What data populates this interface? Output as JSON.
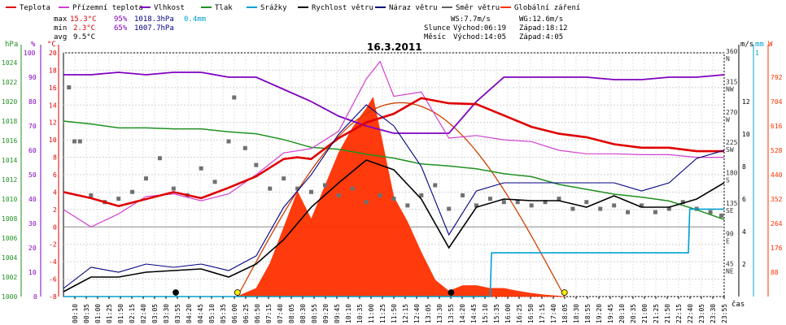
{
  "legend": [
    {
      "label": "Teplota",
      "color": "#e00000"
    },
    {
      "label": "Přízemní teplota",
      "color": "#d040d0"
    },
    {
      "label": "Vlhkost",
      "color": "#8000c0"
    },
    {
      "label": "Tlak",
      "color": "#209020"
    },
    {
      "label": "Srážky",
      "color": "#00a0d0"
    },
    {
      "label": "Rychlost větru",
      "color": "#000000"
    },
    {
      "label": "Náraz větru",
      "color": "#000080"
    },
    {
      "label": "Směr větru",
      "color": "#606060"
    },
    {
      "label": "Globální záření",
      "color": "#ff3000"
    }
  ],
  "stats": {
    "max_label": "max",
    "max_temp": "15.3°C",
    "max_hum": "95%",
    "max_press": "1018.3hPa",
    "max_rain": "0.4mm",
    "min_label": "min",
    "min_temp": "2.3°C",
    "min_hum": "65%",
    "min_press": "1007.7hPa",
    "avg_label": "avg",
    "avg_temp": "9.5°C"
  },
  "info": {
    "ws": "WS:7.7m/s",
    "wg": "WG:12.6m/s",
    "sun_label": "Slunce",
    "sun_rise": "Východ:06:19",
    "sun_set": "Západ:18:12",
    "moon_label": "Měsíc",
    "moon_rise": "Východ:14:05",
    "moon_set": "Západ:4:05"
  },
  "unit_labels": {
    "hpa": "hPa",
    "pct": "%",
    "degc": "°C",
    "ms": "m/s",
    "mm": "mm",
    "w": "W",
    "cas": "čas"
  },
  "chart_data": {
    "type": "line",
    "title": "16.3.2011",
    "xlabel": "čas",
    "x_ticks": [
      "00:10",
      "00:35",
      "01:00",
      "01:25",
      "01:50",
      "02:15",
      "02:40",
      "03:05",
      "03:30",
      "03:55",
      "04:20",
      "04:45",
      "05:10",
      "05:35",
      "06:00",
      "06:25",
      "06:50",
      "07:15",
      "07:40",
      "08:05",
      "08:30",
      "08:55",
      "09:20",
      "09:45",
      "10:10",
      "10:35",
      "11:00",
      "11:25",
      "11:50",
      "12:15",
      "12:40",
      "13:05",
      "13:30",
      "13:55",
      "14:20",
      "14:45",
      "15:10",
      "15:35",
      "16:00",
      "16:25",
      "16:50",
      "17:15",
      "17:40",
      "18:05",
      "18:30",
      "18:55",
      "19:20",
      "19:45",
      "20:10",
      "20:35",
      "21:00",
      "21:25",
      "21:50",
      "22:15",
      "22:40",
      "23:05",
      "23:30",
      "23:55"
    ],
    "axes": {
      "pressure_hpa": {
        "ticks": [
          1000,
          1002,
          1004,
          1006,
          1008,
          1010,
          1012,
          1014,
          1016,
          1018,
          1020,
          1022,
          1024
        ]
      },
      "humidity_pct": {
        "ticks": [
          0,
          10,
          20,
          30,
          40,
          50,
          60,
          70,
          80,
          90,
          100
        ]
      },
      "temperature_c": {
        "ticks": [
          -8,
          -6,
          -4,
          -2,
          0,
          2,
          4,
          6,
          8,
          10,
          12,
          14,
          16,
          18,
          20
        ]
      },
      "wind_dir": {
        "ticks": [
          {
            "v": 45,
            "d": "NE"
          },
          {
            "v": 90,
            "d": "E"
          },
          {
            "v": 135,
            "d": "SE"
          },
          {
            "v": 180,
            "d": "S"
          },
          {
            "v": 225,
            "d": "SW"
          },
          {
            "v": 270,
            "d": "W"
          },
          {
            "v": 315,
            "d": "NW"
          },
          {
            "v": 360,
            "d": "N"
          }
        ]
      },
      "wind_ms": {
        "ticks": [
          2,
          4,
          6,
          8,
          10,
          12
        ]
      },
      "rain_mm": {
        "ticks": [
          1
        ]
      },
      "radiation_w": {
        "ticks": [
          88,
          176,
          264,
          352,
          440,
          528,
          616,
          704,
          792
        ]
      }
    },
    "series": [
      {
        "name": "Teplota",
        "unit": "°C",
        "x": [
          0,
          1,
          2,
          3,
          4,
          5,
          6,
          7,
          8,
          8.5,
          9,
          10,
          11,
          12,
          13,
          14,
          15,
          16,
          17,
          18,
          19,
          20,
          21,
          22,
          23,
          24
        ],
        "y": [
          4,
          3.3,
          2.4,
          3.2,
          4,
          3.3,
          4.5,
          5.8,
          7.8,
          8,
          7.8,
          10.2,
          12,
          13,
          14.8,
          14.2,
          14.1,
          12.8,
          11.5,
          10.7,
          10.3,
          9.5,
          9.1,
          9.1,
          8.7,
          8.7
        ]
      },
      {
        "name": "Přízemní teplota",
        "unit": "°C",
        "x": [
          0,
          1,
          2,
          3,
          4,
          5,
          6,
          7,
          8,
          9,
          10,
          11,
          11.5,
          12,
          13,
          14,
          15,
          16,
          17,
          18,
          19,
          20,
          21,
          22,
          23,
          24
        ],
        "y": [
          2,
          0,
          1.5,
          3.5,
          3.8,
          3,
          3.8,
          6,
          8.5,
          9,
          11,
          17,
          19,
          15,
          15.5,
          10.2,
          10.5,
          10,
          9.8,
          8.8,
          8.4,
          8.4,
          8.3,
          8.3,
          8,
          8
        ]
      },
      {
        "name": "Vlhkost",
        "unit": "%",
        "x": [
          0,
          1,
          2,
          3,
          4,
          5,
          6,
          7,
          8,
          9,
          10,
          11,
          12,
          13,
          14,
          15,
          16,
          17,
          18,
          19,
          20,
          21,
          22,
          23,
          24
        ],
        "y": [
          91,
          91,
          92,
          91,
          92,
          92,
          90,
          90,
          85,
          80,
          74,
          70,
          67,
          67,
          67,
          80,
          90,
          90,
          90,
          90,
          89,
          89,
          90,
          90,
          91
        ]
      },
      {
        "name": "Tlak",
        "unit": "hPa",
        "x": [
          0,
          1,
          2,
          3,
          4,
          5,
          6,
          7,
          8,
          9,
          10,
          11,
          12,
          13,
          14,
          15,
          16,
          17,
          18,
          19,
          20,
          21,
          22,
          23,
          24
        ],
        "y": [
          1018,
          1017.7,
          1017.3,
          1017.3,
          1017.2,
          1017.2,
          1016.9,
          1016.7,
          1016.1,
          1015.3,
          1015.1,
          1014.6,
          1014.2,
          1013.6,
          1013.4,
          1013.1,
          1012.6,
          1012.3,
          1011.5,
          1011,
          1010.5,
          1010.2,
          1009.8,
          1008.9,
          1007.9
        ]
      },
      {
        "name": "Srážky",
        "unit": "mm",
        "x": [
          0,
          15.5,
          15.55,
          22.7,
          22.75,
          24
        ],
        "y": [
          0,
          0,
          0.2,
          0.2,
          0.4,
          0.4
        ]
      },
      {
        "name": "Rychlost větru",
        "unit": "m/s",
        "x": [
          0,
          1,
          2,
          3,
          4,
          5,
          6,
          7,
          8,
          9,
          10,
          11,
          12,
          13,
          14,
          15,
          16,
          17,
          18,
          19,
          20,
          21,
          22,
          23,
          24
        ],
        "y": [
          0.3,
          1.2,
          1.2,
          1.5,
          1.6,
          1.7,
          1.2,
          2,
          3.5,
          5.5,
          7,
          8.4,
          7.8,
          6,
          3,
          5.5,
          6,
          5.9,
          5.9,
          5.5,
          6.2,
          5.5,
          5.5,
          6,
          7
        ]
      },
      {
        "name": "Náraz větru",
        "unit": "m/s",
        "x": [
          0,
          1,
          2,
          3,
          4,
          5,
          6,
          7,
          8,
          9,
          10,
          11,
          12,
          13,
          14,
          15,
          16,
          17,
          18,
          19,
          20,
          21,
          22,
          23,
          24
        ],
        "y": [
          0.5,
          1.8,
          1.5,
          2,
          1.8,
          2,
          1.6,
          2.5,
          5.5,
          7.5,
          10,
          11.8,
          10.5,
          8,
          3.8,
          6.5,
          7,
          7,
          7,
          7,
          7,
          6.5,
          7,
          8.5,
          9
        ]
      },
      {
        "name": "Globální záření",
        "unit": "W",
        "x": [
          6.3,
          7,
          7.5,
          8,
          8.5,
          9,
          9.5,
          10,
          10.5,
          11,
          11.25,
          11.5,
          12,
          12.5,
          13,
          13.5,
          14,
          14.5,
          15,
          15.5,
          16,
          16.5,
          17,
          17.5,
          18,
          18.2
        ],
        "y": [
          0,
          30,
          120,
          250,
          380,
          280,
          400,
          520,
          610,
          680,
          720,
          600,
          360,
          270,
          160,
          60,
          20,
          40,
          40,
          30,
          30,
          20,
          12,
          6,
          2,
          0
        ]
      }
    ],
    "wind_direction_samples": [
      {
        "x": 0.2,
        "d": 310
      },
      {
        "x": 0.4,
        "d": 230
      },
      {
        "x": 0.6,
        "d": 230
      },
      {
        "x": 1,
        "d": 150
      },
      {
        "x": 1.5,
        "d": 140
      },
      {
        "x": 2,
        "d": 145
      },
      {
        "x": 2.5,
        "d": 155
      },
      {
        "x": 3,
        "d": 175
      },
      {
        "x": 3.5,
        "d": 205
      },
      {
        "x": 4,
        "d": 160
      },
      {
        "x": 4.5,
        "d": 150
      },
      {
        "x": 5,
        "d": 190
      },
      {
        "x": 5.5,
        "d": 170
      },
      {
        "x": 6,
        "d": 230
      },
      {
        "x": 6.2,
        "d": 295
      },
      {
        "x": 6.6,
        "d": 220
      },
      {
        "x": 7,
        "d": 195
      },
      {
        "x": 7.5,
        "d": 160
      },
      {
        "x": 8,
        "d": 175
      },
      {
        "x": 8.5,
        "d": 160
      },
      {
        "x": 9,
        "d": 155
      },
      {
        "x": 9.5,
        "d": 165
      },
      {
        "x": 10,
        "d": 150
      },
      {
        "x": 10.5,
        "d": 160
      },
      {
        "x": 11,
        "d": 140
      },
      {
        "x": 11.5,
        "d": 150
      },
      {
        "x": 12,
        "d": 145
      },
      {
        "x": 12.5,
        "d": 135
      },
      {
        "x": 13,
        "d": 150
      },
      {
        "x": 13.5,
        "d": 165
      },
      {
        "x": 14,
        "d": 130
      },
      {
        "x": 14.5,
        "d": 150
      },
      {
        "x": 15,
        "d": 135
      },
      {
        "x": 15.5,
        "d": 145
      },
      {
        "x": 16,
        "d": 140
      },
      {
        "x": 16.5,
        "d": 140
      },
      {
        "x": 17,
        "d": 135
      },
      {
        "x": 17.5,
        "d": 140
      },
      {
        "x": 18,
        "d": 145
      },
      {
        "x": 18.5,
        "d": 130
      },
      {
        "x": 19,
        "d": 140
      },
      {
        "x": 19.5,
        "d": 130
      },
      {
        "x": 20,
        "d": 135
      },
      {
        "x": 20.5,
        "d": 125
      },
      {
        "x": 21,
        "d": 135
      },
      {
        "x": 21.5,
        "d": 125
      },
      {
        "x": 22,
        "d": 130
      },
      {
        "x": 22.5,
        "d": 140
      },
      {
        "x": 23,
        "d": 130
      },
      {
        "x": 23.5,
        "d": 125
      },
      {
        "x": 23.9,
        "d": 120
      }
    ],
    "sun_track": {
      "rise": 6.32,
      "set": 18.2,
      "peak_w": 700
    },
    "markers": [
      {
        "x": 4.08,
        "color": "#000000"
      },
      {
        "x": 6.32,
        "color": "#ffee00"
      },
      {
        "x": 14.08,
        "color": "#000000"
      },
      {
        "x": 18.2,
        "color": "#ffee00"
      }
    ]
  }
}
